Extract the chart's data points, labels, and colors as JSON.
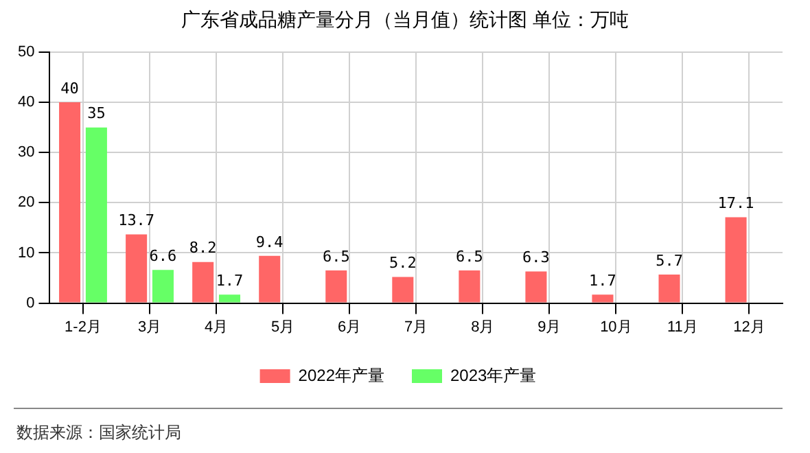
{
  "chart_data": {
    "type": "bar",
    "title": "广东省成品糖产量分月（当月值）统计图 单位：万吨",
    "categories": [
      "1-2月",
      "3月",
      "4月",
      "5月",
      "6月",
      "7月",
      "8月",
      "9月",
      "10月",
      "11月",
      "12月"
    ],
    "series": [
      {
        "name": "2022年产量",
        "color": "#ff6666",
        "values": [
          40,
          13.7,
          8.2,
          9.4,
          6.5,
          5.2,
          6.5,
          6.3,
          1.7,
          5.7,
          17.1
        ]
      },
      {
        "name": "2023年产量",
        "color": "#66ff66",
        "values": [
          35,
          6.6,
          1.7,
          null,
          null,
          null,
          null,
          null,
          null,
          null,
          null
        ]
      }
    ],
    "ylim": [
      0,
      50
    ],
    "yticks": [
      0,
      10,
      20,
      30,
      40,
      50
    ],
    "grid": true,
    "legend": "bottom",
    "data_labels": true,
    "annotations": [
      "数据来源：国家统计局"
    ]
  }
}
